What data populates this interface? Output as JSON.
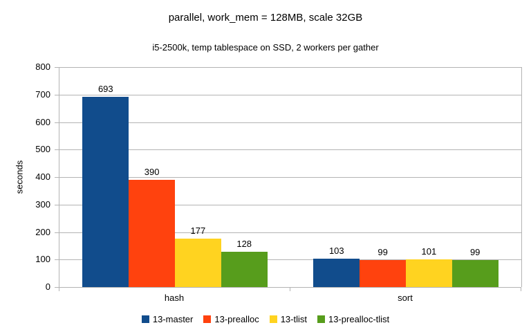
{
  "chart_data": {
    "type": "bar",
    "title": "parallel, work_mem = 128MB, scale 32GB",
    "subtitle": "i5-2500k, temp tablespace on SSD, 2 workers per gather",
    "ylabel": "seconds",
    "xlabel": "",
    "categories": [
      "hash",
      "sort"
    ],
    "series": [
      {
        "name": "13-master",
        "color": "#114C8C",
        "values": [
          693,
          103
        ]
      },
      {
        "name": "13-prealloc",
        "color": "#FF420E",
        "values": [
          390,
          99
        ]
      },
      {
        "name": "13-tlist",
        "color": "#FFD320",
        "values": [
          177,
          101
        ]
      },
      {
        "name": "13-prealloc-tlist",
        "color": "#579D1C",
        "values": [
          128,
          99
        ]
      }
    ],
    "ylim": [
      0,
      800
    ],
    "ytick_step": 100,
    "grid": true,
    "legend_position": "bottom",
    "gridline_color": "#b3b3b3",
    "background_color": "#ffffff"
  }
}
